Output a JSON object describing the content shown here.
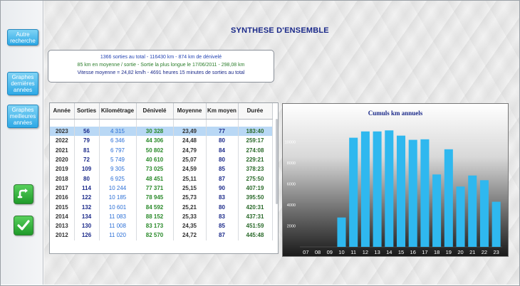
{
  "sidebar": {
    "btn_other_search": "Autre recherche",
    "btn_graphs_last_years": "Graphes dernières années",
    "btn_graphs_best_years": "Graphes meilleures années"
  },
  "title": "SYNTHESE D'ENSEMBLE",
  "summary": {
    "line1": "1366 sorties au total  -  116430 km  -  874 km de dénivelé",
    "line2": "85 km en moyenne / sortie - Sortie la plus longue le 17/06/2011 - 298,08 km",
    "line3": "Vitesse moyenne = 24,82 km/h - 4691 heures 15 minutes  de sorties au total"
  },
  "table": {
    "headers": [
      "Année",
      "Sorties",
      "Kilométrage",
      "Dénivelé",
      "Moyenne",
      "Km moyen",
      "Durée"
    ],
    "rows": [
      [
        "2023",
        "56",
        "4 315",
        "30 328",
        "23,49",
        "77",
        "183:40"
      ],
      [
        "2022",
        "79",
        "6 346",
        "44 306",
        "24,48",
        "80",
        "259:17"
      ],
      [
        "2021",
        "81",
        "6 797",
        "50 802",
        "24,79",
        "84",
        "274:08"
      ],
      [
        "2020",
        "72",
        "5 749",
        "40 610",
        "25,07",
        "80",
        "229:21"
      ],
      [
        "2019",
        "109",
        "9 305",
        "73 025",
        "24,59",
        "85",
        "378:23"
      ],
      [
        "2018",
        "80",
        "6 925",
        "48 451",
        "25,11",
        "87",
        "275:50"
      ],
      [
        "2017",
        "114",
        "10 244",
        "77 371",
        "25,15",
        "90",
        "407:19"
      ],
      [
        "2016",
        "122",
        "10 185",
        "78 945",
        "25,73",
        "83",
        "395:50"
      ],
      [
        "2015",
        "132",
        "10 601",
        "84 592",
        "25,21",
        "80",
        "420:31"
      ],
      [
        "2014",
        "134",
        "11 083",
        "88 152",
        "25,33",
        "83",
        "437:31"
      ],
      [
        "2013",
        "130",
        "11 008",
        "83 173",
        "24,35",
        "85",
        "451:59"
      ],
      [
        "2012",
        "126",
        "11 020",
        "82 570",
        "24,72",
        "87",
        "445:48"
      ]
    ]
  },
  "chart_data": {
    "type": "bar",
    "title": "Cumuls km annuels",
    "categories": [
      "07",
      "08",
      "09",
      "10",
      "11",
      "12",
      "13",
      "14",
      "15",
      "16",
      "17",
      "18",
      "19",
      "20",
      "21",
      "22",
      "23"
    ],
    "values": [
      0,
      0,
      0,
      2800,
      10400,
      11000,
      11000,
      11100,
      10600,
      10200,
      10250,
      6900,
      9300,
      5750,
      6800,
      6350,
      4300
    ],
    "ylim": [
      0,
      12000
    ],
    "yticks": [
      "2000",
      "4000",
      "6000",
      "8000",
      "10000"
    ],
    "bar_color": "#2fb8ef"
  },
  "colors": {
    "accent": "#2ea9e6",
    "title": "#1b2a8a",
    "green_icon": "#1f9a2a"
  }
}
